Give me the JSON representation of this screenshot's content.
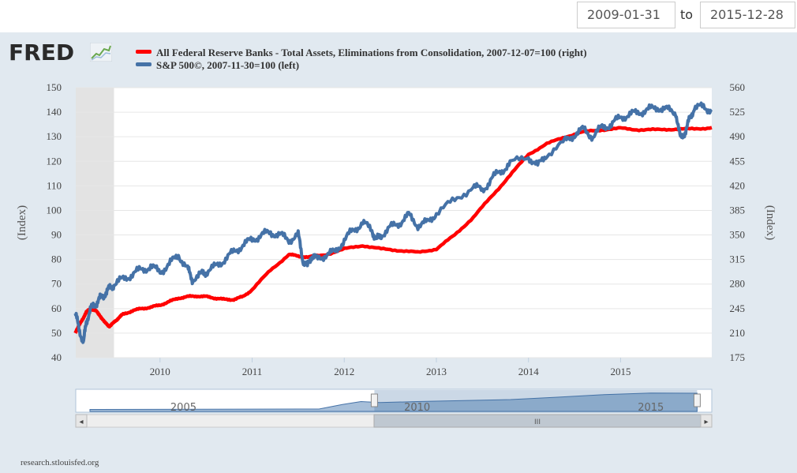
{
  "controls": {
    "start_date": "2009-01-31",
    "to_label": "to",
    "end_date": "2015-12-28"
  },
  "logo": {
    "text": "FRED"
  },
  "footer": {
    "text": "research.stlouisfed.org"
  },
  "chart_data": {
    "type": "line",
    "x_range": [
      2009.085,
      2015.99
    ],
    "recession_shading": [
      [
        2009.085,
        2009.5
      ]
    ],
    "x_ticks": [
      {
        "value": 2010,
        "label": "2010"
      },
      {
        "value": 2011,
        "label": "2011"
      },
      {
        "value": 2012,
        "label": "2012"
      },
      {
        "value": 2013,
        "label": "2013"
      },
      {
        "value": 2014,
        "label": "2014"
      },
      {
        "value": 2015,
        "label": "2015"
      }
    ],
    "y_left": {
      "title": "(Index)",
      "range": [
        40,
        150
      ],
      "ticks": [
        40,
        50,
        60,
        70,
        80,
        90,
        100,
        110,
        120,
        130,
        140,
        150
      ]
    },
    "y_right": {
      "title": "(Index)",
      "range": [
        175,
        560
      ],
      "ticks": [
        175,
        210,
        245,
        280,
        315,
        350,
        385,
        420,
        455,
        490,
        525,
        560
      ]
    },
    "series": [
      {
        "name": "All Federal Reserve Banks - Total Assets, Eliminations from Consolidation, 2007-12-07=100 (right)",
        "axis": "right",
        "color": "#ff0000",
        "x": [
          2009.08,
          2009.15,
          2009.2,
          2009.25,
          2009.3,
          2009.35,
          2009.4,
          2009.45,
          2009.5,
          2009.55,
          2009.6,
          2009.7,
          2009.8,
          2009.9,
          2010.0,
          2010.1,
          2010.2,
          2010.3,
          2010.4,
          2010.5,
          2010.6,
          2010.7,
          2010.8,
          2010.9,
          2011.0,
          2011.2,
          2011.4,
          2011.5,
          2011.6,
          2011.8,
          2012.0,
          2012.2,
          2012.4,
          2012.6,
          2012.8,
          2013.0,
          2013.2,
          2013.4,
          2013.6,
          2013.8,
          2014.0,
          2014.2,
          2014.4,
          2014.6,
          2014.8,
          2015.0,
          2015.2,
          2015.4,
          2015.6,
          2015.8,
          2015.99
        ],
        "values": [
          210,
          228,
          240,
          245,
          242,
          235,
          225,
          220,
          225,
          232,
          237,
          242,
          245,
          247,
          250,
          255,
          260,
          262,
          263,
          262,
          260,
          258,
          258,
          262,
          272,
          300,
          322,
          320,
          318,
          322,
          330,
          335,
          330,
          328,
          325,
          330,
          350,
          375,
          405,
          435,
          465,
          480,
          490,
          497,
          500,
          502,
          500,
          500,
          501,
          501,
          503
        ]
      },
      {
        "name": "S&P 500©, 2007-11-30=100 (left)",
        "axis": "left",
        "color": "#4572a7",
        "x": [
          2009.08,
          2009.12,
          2009.17,
          2009.2,
          2009.25,
          2009.3,
          2009.35,
          2009.4,
          2009.45,
          2009.5,
          2009.6,
          2009.7,
          2009.8,
          2009.9,
          2010.0,
          2010.1,
          2010.2,
          2010.3,
          2010.35,
          2010.45,
          2010.5,
          2010.6,
          2010.7,
          2010.8,
          2010.9,
          2011.0,
          2011.1,
          2011.2,
          2011.3,
          2011.4,
          2011.5,
          2011.55,
          2011.6,
          2011.65,
          2011.7,
          2011.8,
          2011.9,
          2012.0,
          2012.1,
          2012.2,
          2012.3,
          2012.35,
          2012.4,
          2012.5,
          2012.6,
          2012.7,
          2012.8,
          2012.9,
          2013.0,
          2013.2,
          2013.4,
          2013.5,
          2013.6,
          2013.7,
          2013.8,
          2014.0,
          2014.1,
          2014.2,
          2014.4,
          2014.5,
          2014.6,
          2014.7,
          2014.8,
          2014.9,
          2015.0,
          2015.1,
          2015.2,
          2015.3,
          2015.4,
          2015.5,
          2015.6,
          2015.65,
          2015.7,
          2015.75,
          2015.8,
          2015.9,
          2015.99
        ],
        "values": [
          58,
          52,
          46,
          55,
          60,
          62,
          64,
          66,
          68,
          70,
          72,
          74,
          76,
          77,
          75,
          78,
          82,
          76,
          72,
          74,
          75,
          77,
          80,
          83,
          86,
          88,
          90,
          91,
          90,
          88,
          90,
          80,
          77,
          82,
          80,
          82,
          83,
          88,
          92,
          95,
          92,
          88,
          90,
          93,
          95,
          98,
          94,
          95,
          99,
          104,
          110,
          108,
          113,
          116,
          119,
          122,
          118,
          123,
          128,
          131,
          133,
          130,
          134,
          135,
          138,
          139,
          140,
          141,
          142,
          141,
          140,
          129,
          132,
          137,
          142,
          142,
          141
        ]
      }
    ],
    "navigator": {
      "x_ticks": [
        {
          "value": 2005,
          "label": "2005"
        },
        {
          "value": 2010,
          "label": "2010"
        },
        {
          "value": 2015,
          "label": "2015"
        }
      ],
      "scroll_glyph": "III",
      "left_arrow": "◂",
      "right_arrow": "▸"
    }
  }
}
